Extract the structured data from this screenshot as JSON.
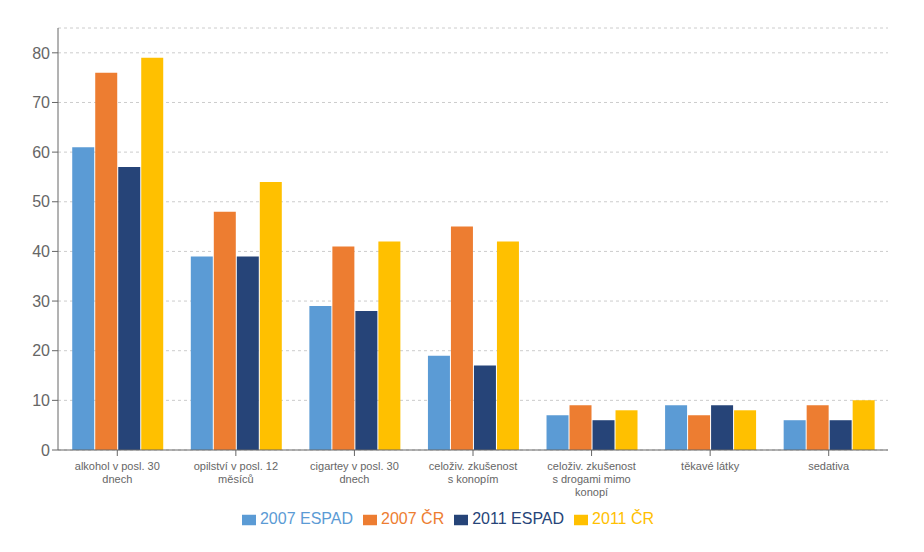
{
  "chart_data": {
    "type": "bar",
    "categories": [
      "alkohol v posl. 30\ndnech",
      "opilství v posl. 12\nměsíců",
      "cigartey v posl. 30\ndnech",
      "celoživ. zkušenost\ns konopím",
      "celoživ. zkušenost\ns drogami mimo\nkonopí",
      "těkavé látky",
      "sedativa"
    ],
    "series": [
      {
        "name": "2007 ESPAD",
        "color": "#5B9BD5",
        "values": [
          61,
          39,
          29,
          19,
          7,
          9,
          6
        ]
      },
      {
        "name": "2007 ČR",
        "color": "#ED7D31",
        "values": [
          76,
          48,
          41,
          45,
          9,
          7,
          9
        ]
      },
      {
        "name": "2011 ESPAD",
        "color": "#264478",
        "values": [
          57,
          39,
          28,
          17,
          6,
          9,
          6
        ]
      },
      {
        "name": "2011 ČR",
        "color": "#FFC000",
        "values": [
          79,
          54,
          42,
          42,
          8,
          8,
          10
        ]
      }
    ],
    "ylim": [
      0,
      85
    ],
    "yticks": [
      0,
      10,
      20,
      30,
      40,
      50,
      60,
      70,
      80
    ],
    "grid": true,
    "legend": "bottom"
  }
}
